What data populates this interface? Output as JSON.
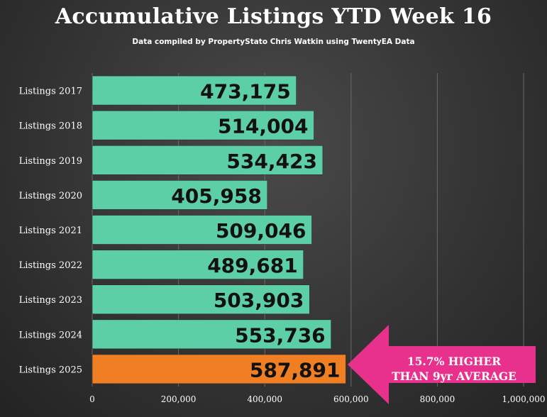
{
  "title": "Accumulative Listings YTD Week 16",
  "subtitle": "Data compiled by PropertyStato Chris Watkin using TwentyEA Data",
  "callout": {
    "line1": "15.7% HIGHER",
    "line2": "THAN 9yr AVERAGE",
    "color": "#e8318c"
  },
  "colors": {
    "bar": "#5ccfa6",
    "highlight_bar": "#f07f24",
    "value_label": "#111111",
    "axis_text": "#ffffff",
    "grid": "#6a6a6a"
  },
  "chart_data": {
    "type": "bar",
    "orientation": "horizontal",
    "categories": [
      "Listings 2017",
      "Listings 2018",
      "Listings 2019",
      "Listings 2020",
      "Listings 2021",
      "Listings 2022",
      "Listings 2023",
      "Listings 2024",
      "Listings 2025"
    ],
    "values": [
      473175,
      514004,
      534423,
      405958,
      509046,
      489681,
      503903,
      553736,
      587891
    ],
    "value_labels": [
      "473,175",
      "514,004",
      "534,423",
      "405,958",
      "509,046",
      "489,681",
      "503,903",
      "553,736",
      "587,891"
    ],
    "highlight_index": 8,
    "xlim": [
      0,
      1000000
    ],
    "ticks": [
      0,
      200000,
      400000,
      600000,
      800000,
      1000000
    ],
    "tick_labels": [
      "0",
      "200,000",
      "400,000",
      "600,000",
      "800,000",
      "1,000,000"
    ],
    "grid": true
  }
}
